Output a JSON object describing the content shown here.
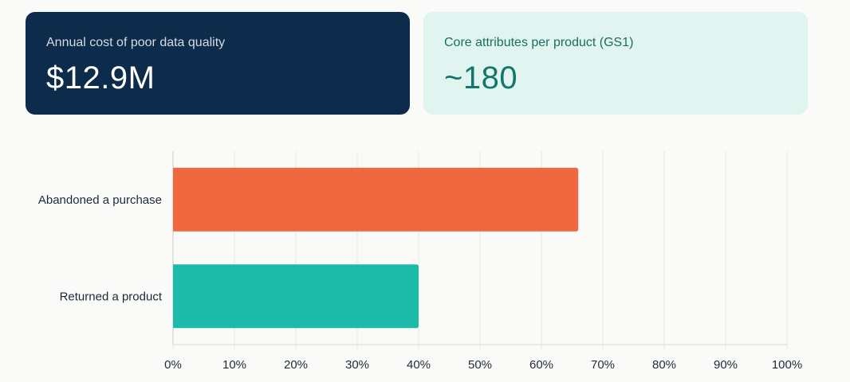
{
  "stats": [
    {
      "label": "Annual cost of poor data quality",
      "value": "$12.9M"
    },
    {
      "label": "Core attributes per product (GS1)",
      "value": "~180"
    }
  ],
  "colors": {
    "card_primary_bg": "#0d2b4b",
    "card_secondary_bg": "#e0f4f0",
    "bar_abandoned": "#f06840",
    "bar_returned": "#1cbaa9",
    "grid": "#e6e6e2"
  },
  "chart_data": {
    "type": "bar",
    "orientation": "horizontal",
    "categories": [
      "Abandoned a purchase",
      "Returned a product"
    ],
    "values": [
      66,
      40
    ],
    "bar_colors": [
      "#f06840",
      "#1cbaa9"
    ],
    "xlim": [
      0,
      100
    ],
    "x_ticks": [
      "0%",
      "10%",
      "20%",
      "30%",
      "40%",
      "50%",
      "60%",
      "70%",
      "80%",
      "90%",
      "100%"
    ],
    "grid": true,
    "legend": "none"
  }
}
